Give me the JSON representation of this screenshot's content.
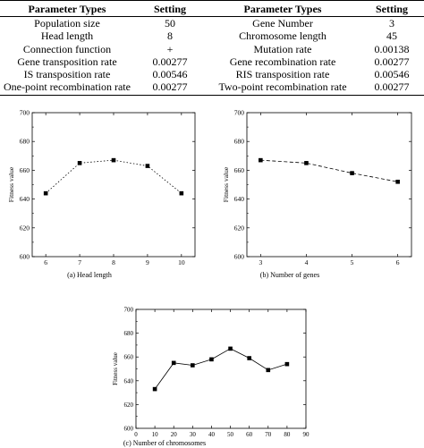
{
  "table": {
    "headers": [
      "Parameter Types",
      "Setting",
      "Parameter Types",
      "Setting"
    ],
    "rows": [
      [
        "Population size",
        "50",
        "Gene Number",
        "3"
      ],
      [
        "Head length",
        "8",
        "Chromosome length",
        "45"
      ],
      [
        "Connection function",
        "+",
        "Mutation rate",
        "0.00138"
      ],
      [
        "Gene transposition rate",
        "0.00277",
        "Gene recombination rate",
        "0.00277"
      ],
      [
        "IS transposition rate",
        "0.00546",
        "RIS transposition rate",
        "0.00546"
      ],
      [
        "One-point recombination rate",
        "0.00277",
        "Two-point recombination rate",
        "0.00277"
      ]
    ]
  },
  "chart_data": [
    {
      "type": "line",
      "caption": "(a) Head length",
      "ylabel": "Fitness value",
      "x": [
        6,
        7,
        8,
        9,
        10
      ],
      "values": [
        644,
        665,
        667,
        663,
        644
      ],
      "xticks": [
        6,
        7,
        8,
        9,
        10
      ],
      "yticks": [
        600,
        620,
        640,
        660,
        680,
        700
      ],
      "xlim": [
        5.6,
        10.4
      ],
      "ylim": [
        600,
        700
      ],
      "line_style": "dotted",
      "marker": "square"
    },
    {
      "type": "line",
      "caption": "(b) Number of genes",
      "ylabel": "Fitness value",
      "x": [
        3,
        4,
        5,
        6
      ],
      "values": [
        667,
        665,
        658,
        652
      ],
      "xticks": [
        3,
        4,
        5,
        6
      ],
      "yticks": [
        600,
        620,
        640,
        660,
        680,
        700
      ],
      "xlim": [
        2.7,
        6.3
      ],
      "ylim": [
        600,
        700
      ],
      "line_style": "dashed",
      "marker": "square"
    },
    {
      "type": "line",
      "caption": "(c) Number of chromosomes",
      "ylabel": "Fitness value",
      "x": [
        10,
        20,
        30,
        40,
        50,
        60,
        70,
        80
      ],
      "values": [
        633,
        655,
        653,
        658,
        667,
        659,
        649,
        654
      ],
      "xticks": [
        0,
        10,
        20,
        30,
        40,
        50,
        60,
        70,
        80,
        90
      ],
      "yticks": [
        600,
        620,
        640,
        660,
        680,
        700
      ],
      "xlim": [
        0,
        90
      ],
      "ylim": [
        600,
        700
      ],
      "line_style": "solid",
      "marker": "square"
    }
  ]
}
